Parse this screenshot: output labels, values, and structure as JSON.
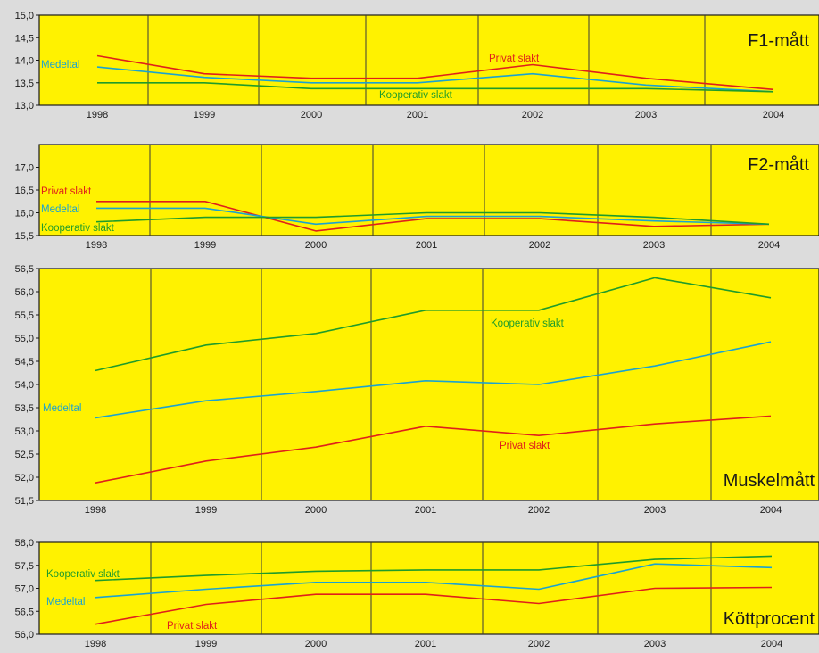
{
  "chart_data": [
    {
      "type": "line",
      "title": "F1-mått",
      "x": [
        "1998",
        "1999",
        "2000",
        "2001",
        "2002",
        "2003",
        "2004"
      ],
      "ylim": [
        13.0,
        15.0
      ],
      "yticks": [
        "13,0",
        "13,5",
        "14,0",
        "14,5",
        "15,0"
      ],
      "series": [
        {
          "name": "Privat slakt",
          "color": "#e0201a",
          "values": [
            14.1,
            13.7,
            13.6,
            13.6,
            13.9,
            13.6,
            13.35
          ]
        },
        {
          "name": "Medeltal",
          "color": "#1aa3d0",
          "values": [
            13.85,
            13.62,
            13.5,
            13.5,
            13.7,
            13.45,
            13.3
          ]
        },
        {
          "name": "Kooperativ slakt",
          "color": "#1f9c2a",
          "values": [
            13.5,
            13.5,
            13.37,
            13.37,
            13.37,
            13.37,
            13.3
          ]
        }
      ]
    },
    {
      "type": "line",
      "title": "F2-mått",
      "x": [
        "1998",
        "1999",
        "2000",
        "2001",
        "2002",
        "2003",
        "2004"
      ],
      "ylim": [
        15.5,
        17.5
      ],
      "yticks": [
        "15,5",
        "16,0",
        "16,5",
        "17,0"
      ],
      "series": [
        {
          "name": "Privat slakt",
          "color": "#e0201a",
          "values": [
            16.25,
            16.25,
            15.6,
            15.87,
            15.87,
            15.7,
            15.75
          ]
        },
        {
          "name": "Medeltal",
          "color": "#1aa3d0",
          "values": [
            16.1,
            16.1,
            15.75,
            15.92,
            15.92,
            15.82,
            15.75
          ]
        },
        {
          "name": "Kooperativ slakt",
          "color": "#1f9c2a",
          "values": [
            15.8,
            15.9,
            15.9,
            16.0,
            16.0,
            15.9,
            15.75
          ]
        }
      ]
    },
    {
      "type": "line",
      "title": "Muskelmått",
      "x": [
        "1998",
        "1999",
        "2000",
        "2001",
        "2002",
        "2003",
        "2004"
      ],
      "ylim": [
        51.5,
        56.5
      ],
      "yticks": [
        "51,5",
        "52,0",
        "52,5",
        "53,0",
        "53,5",
        "54,0",
        "54,5",
        "55,0",
        "55,5",
        "56,0",
        "56,5"
      ],
      "series": [
        {
          "name": "Kooperativ slakt",
          "color": "#1f9c2a",
          "values": [
            54.3,
            54.85,
            55.1,
            55.6,
            55.6,
            56.3,
            55.87
          ]
        },
        {
          "name": "Medeltal",
          "color": "#1aa3d0",
          "values": [
            53.28,
            53.65,
            53.85,
            54.08,
            54.0,
            54.4,
            54.92
          ]
        },
        {
          "name": "Privat slakt",
          "color": "#e0201a",
          "values": [
            51.88,
            52.35,
            52.65,
            53.1,
            52.9,
            53.15,
            53.32
          ]
        }
      ]
    },
    {
      "type": "line",
      "title": "Köttprocent",
      "x": [
        "1998",
        "1999",
        "2000",
        "2001",
        "2002",
        "2003",
        "2004"
      ],
      "ylim": [
        56.0,
        58.0
      ],
      "yticks": [
        "56,0",
        "56,5",
        "57,0",
        "57,5",
        "58,0"
      ],
      "series": [
        {
          "name": "Kooperativ slakt",
          "color": "#1f9c2a",
          "values": [
            57.17,
            57.28,
            57.37,
            57.4,
            57.4,
            57.63,
            57.7
          ]
        },
        {
          "name": "Medeltal",
          "color": "#1aa3d0",
          "values": [
            56.8,
            56.98,
            57.13,
            57.13,
            56.98,
            57.53,
            57.45
          ]
        },
        {
          "name": "Privat slakt",
          "color": "#e0201a",
          "values": [
            56.22,
            56.65,
            56.87,
            56.87,
            56.67,
            57.0,
            57.02
          ]
        }
      ]
    }
  ]
}
